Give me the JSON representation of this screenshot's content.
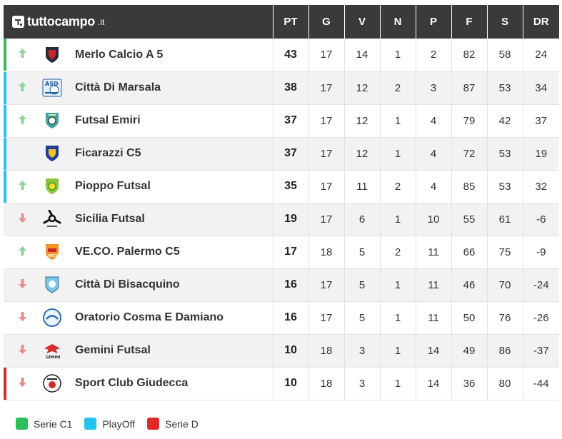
{
  "brand": {
    "name": "tuttocampo",
    "tld": ".it"
  },
  "columns": [
    "PT",
    "G",
    "V",
    "N",
    "P",
    "F",
    "S",
    "DR"
  ],
  "colors": {
    "serie_c1": "#2fbf5a",
    "playoff": "#20c4ee",
    "serie_d": "#e02a2a",
    "up": "#8ed59a",
    "down": "#f08a8a"
  },
  "rows": [
    {
      "team": "Merlo Calcio A 5",
      "zone": "serie_c1",
      "trend": "up",
      "crest": "shield-dark-red",
      "pt": "43",
      "g": "17",
      "v": "14",
      "n": "1",
      "p": "2",
      "f": "82",
      "s": "58",
      "dr": "24"
    },
    {
      "team": "Città Di Marsala",
      "zone": "playoff",
      "trend": "up",
      "crest": "asd-ball",
      "pt": "38",
      "g": "17",
      "v": "12",
      "n": "2",
      "p": "3",
      "f": "87",
      "s": "53",
      "dr": "34"
    },
    {
      "team": "Futsal Emiri",
      "zone": "playoff",
      "trend": "up",
      "crest": "shield-teal",
      "pt": "37",
      "g": "17",
      "v": "12",
      "n": "1",
      "p": "4",
      "f": "79",
      "s": "42",
      "dr": "37"
    },
    {
      "team": "Ficarazzi C5",
      "zone": "playoff",
      "trend": "none",
      "crest": "shield-blue-yellow",
      "pt": "37",
      "g": "17",
      "v": "12",
      "n": "1",
      "p": "4",
      "f": "72",
      "s": "53",
      "dr": "19"
    },
    {
      "team": "Pioppo Futsal",
      "zone": "playoff",
      "trend": "up",
      "crest": "shield-green-yellow",
      "pt": "35",
      "g": "17",
      "v": "11",
      "n": "2",
      "p": "4",
      "f": "85",
      "s": "53",
      "dr": "32"
    },
    {
      "team": "Sicilia Futsal",
      "zone": "none",
      "trend": "down",
      "crest": "triskelion",
      "pt": "19",
      "g": "17",
      "v": "6",
      "n": "1",
      "p": "10",
      "f": "55",
      "s": "61",
      "dr": "-6"
    },
    {
      "team": "VE.CO. Palermo C5",
      "zone": "none",
      "trend": "up",
      "crest": "shield-orange",
      "pt": "17",
      "g": "18",
      "v": "5",
      "n": "2",
      "p": "11",
      "f": "66",
      "s": "75",
      "dr": "-9"
    },
    {
      "team": "Città Di Bisacquino",
      "zone": "none",
      "trend": "down",
      "crest": "shield-light-blue",
      "pt": "16",
      "g": "17",
      "v": "5",
      "n": "1",
      "p": "11",
      "f": "46",
      "s": "70",
      "dr": "-24"
    },
    {
      "team": "Oratorio Cosma E Damiano",
      "zone": "none",
      "trend": "down",
      "crest": "circle-blue",
      "pt": "16",
      "g": "17",
      "v": "5",
      "n": "1",
      "p": "11",
      "f": "50",
      "s": "76",
      "dr": "-26"
    },
    {
      "team": "Gemini Futsal",
      "zone": "none",
      "trend": "down",
      "crest": "eagle-red",
      "pt": "10",
      "g": "18",
      "v": "3",
      "n": "1",
      "p": "14",
      "f": "49",
      "s": "86",
      "dr": "-37"
    },
    {
      "team": "Sport Club Giudecca",
      "zone": "serie_d",
      "trend": "down",
      "crest": "circle-red-white",
      "pt": "10",
      "g": "18",
      "v": "3",
      "n": "1",
      "p": "14",
      "f": "36",
      "s": "80",
      "dr": "-44"
    }
  ],
  "legend": [
    {
      "label": "Serie C1",
      "color": "#2fbf5a"
    },
    {
      "label": "PlayOff",
      "color": "#20c4ee"
    },
    {
      "label": "Serie D",
      "color": "#e02a2a"
    }
  ]
}
